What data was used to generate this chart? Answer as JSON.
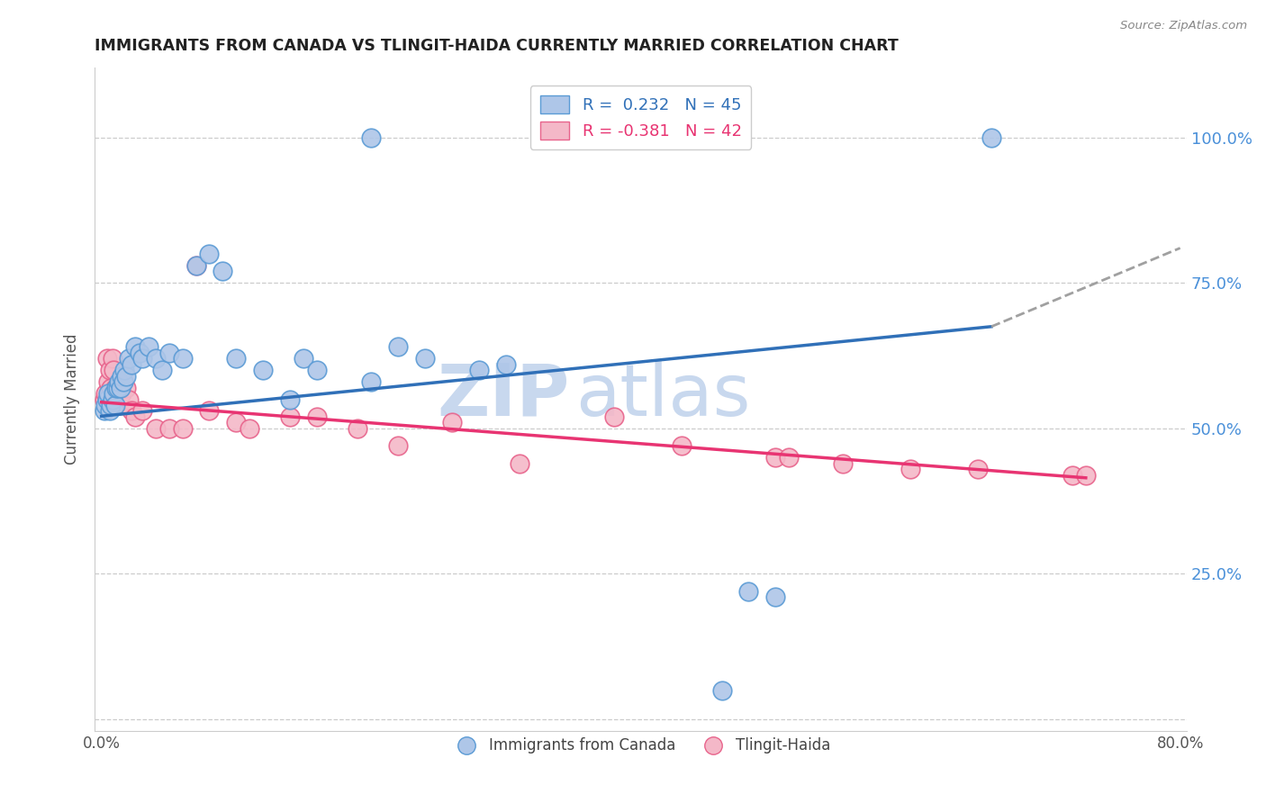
{
  "title": "IMMIGRANTS FROM CANADA VS TLINGIT-HAIDA CURRENTLY MARRIED CORRELATION CHART",
  "source_text": "Source: ZipAtlas.com",
  "xlabel_blue": "Immigrants from Canada",
  "xlabel_pink": "Tlingit-Haida",
  "ylabel": "Currently Married",
  "xlim": [
    -0.005,
    0.805
  ],
  "ylim": [
    -0.02,
    1.12
  ],
  "xtick_positions": [
    0.0,
    0.1,
    0.2,
    0.3,
    0.4,
    0.5,
    0.6,
    0.7,
    0.8
  ],
  "xtick_labels": [
    "0.0%",
    "",
    "",
    "",
    "",
    "",
    "",
    "",
    "80.0%"
  ],
  "ytick_positions": [
    0.0,
    0.25,
    0.5,
    0.75,
    1.0
  ],
  "ytick_labels": [
    "",
    "25.0%",
    "50.0%",
    "75.0%",
    "100.0%"
  ],
  "r_blue": 0.232,
  "n_blue": 45,
  "r_pink": -0.381,
  "n_pink": 42,
  "blue_fill": "#aec6e8",
  "blue_edge": "#5b9bd5",
  "pink_fill": "#f4b8c8",
  "pink_edge": "#e8648c",
  "blue_line_color": "#3070b8",
  "pink_line_color": "#e83472",
  "dash_line_color": "#a0a0a0",
  "legend_blue_color": "#3070b8",
  "legend_pink_color": "#e83472",
  "blue_scatter_x": [
    0.002,
    0.003,
    0.004,
    0.005,
    0.006,
    0.007,
    0.008,
    0.009,
    0.01,
    0.011,
    0.012,
    0.013,
    0.014,
    0.015,
    0.016,
    0.017,
    0.018,
    0.02,
    0.022,
    0.025,
    0.028,
    0.03,
    0.035,
    0.04,
    0.045,
    0.05,
    0.06,
    0.07,
    0.08,
    0.09,
    0.1,
    0.12,
    0.14,
    0.15,
    0.16,
    0.2,
    0.22,
    0.24,
    0.28,
    0.3,
    0.46,
    0.48,
    0.5,
    0.66,
    0.2
  ],
  "blue_scatter_y": [
    0.53,
    0.54,
    0.55,
    0.56,
    0.53,
    0.54,
    0.55,
    0.56,
    0.54,
    0.57,
    0.57,
    0.58,
    0.57,
    0.59,
    0.58,
    0.6,
    0.59,
    0.62,
    0.61,
    0.64,
    0.63,
    0.62,
    0.64,
    0.62,
    0.6,
    0.63,
    0.62,
    0.78,
    0.8,
    0.77,
    0.62,
    0.6,
    0.55,
    0.62,
    0.6,
    0.58,
    0.64,
    0.62,
    0.6,
    0.61,
    0.05,
    0.22,
    0.21,
    1.0,
    1.0
  ],
  "pink_scatter_x": [
    0.002,
    0.003,
    0.004,
    0.005,
    0.006,
    0.007,
    0.008,
    0.009,
    0.01,
    0.011,
    0.012,
    0.013,
    0.014,
    0.015,
    0.016,
    0.018,
    0.02,
    0.022,
    0.025,
    0.03,
    0.04,
    0.05,
    0.06,
    0.07,
    0.08,
    0.1,
    0.11,
    0.14,
    0.16,
    0.19,
    0.22,
    0.26,
    0.31,
    0.38,
    0.43,
    0.5,
    0.51,
    0.55,
    0.6,
    0.65,
    0.72,
    0.73
  ],
  "pink_scatter_y": [
    0.55,
    0.56,
    0.62,
    0.58,
    0.6,
    0.57,
    0.62,
    0.6,
    0.57,
    0.56,
    0.56,
    0.54,
    0.58,
    0.56,
    0.58,
    0.57,
    0.55,
    0.53,
    0.52,
    0.53,
    0.5,
    0.5,
    0.5,
    0.78,
    0.53,
    0.51,
    0.5,
    0.52,
    0.52,
    0.5,
    0.47,
    0.51,
    0.44,
    0.52,
    0.47,
    0.45,
    0.45,
    0.44,
    0.43,
    0.43,
    0.42,
    0.42
  ],
  "watermark_zip": "ZIP",
  "watermark_atlas": "atlas",
  "watermark_color": "#c8d8ee",
  "background_color": "#ffffff",
  "grid_color": "#cccccc",
  "blue_line_x_start": 0.0,
  "blue_line_x_solid_end": 0.66,
  "blue_line_x_dash_end": 0.8,
  "blue_line_y_start": 0.521,
  "blue_line_y_solid_end": 0.675,
  "blue_line_y_dash_end": 0.81,
  "pink_line_x_start": 0.0,
  "pink_line_x_end": 0.73,
  "pink_line_y_start": 0.545,
  "pink_line_y_end": 0.415
}
